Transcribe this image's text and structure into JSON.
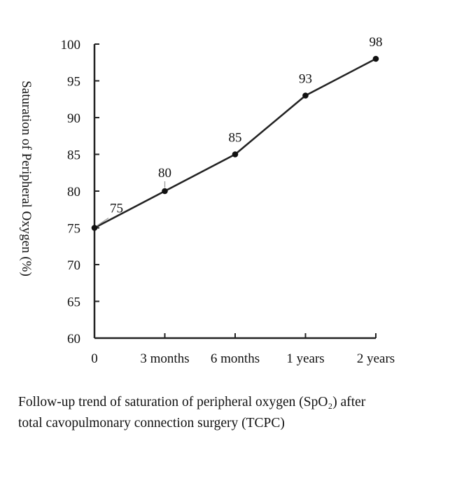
{
  "chart_data": {
    "type": "line",
    "categories": [
      "0",
      "3 months",
      "6 months",
      "1 years",
      "2 years"
    ],
    "values": [
      75,
      80,
      85,
      93,
      98
    ],
    "data_labels": [
      "75",
      "80",
      "85",
      "93",
      "98"
    ],
    "ylabel": "Saturation of Peripheral Oxygen (%)",
    "xlabel": "",
    "ylim": [
      60,
      100
    ],
    "yticks": [
      "60",
      "65",
      "70",
      "75",
      "80",
      "85",
      "90",
      "95",
      "100"
    ],
    "grid": false,
    "line_color": "#222222"
  },
  "caption": {
    "line1": "Follow-up trend of saturation of peripheral oxygen (SpO₂) after",
    "line2": "total cavopulmonary connection surgery (TCPC)"
  }
}
